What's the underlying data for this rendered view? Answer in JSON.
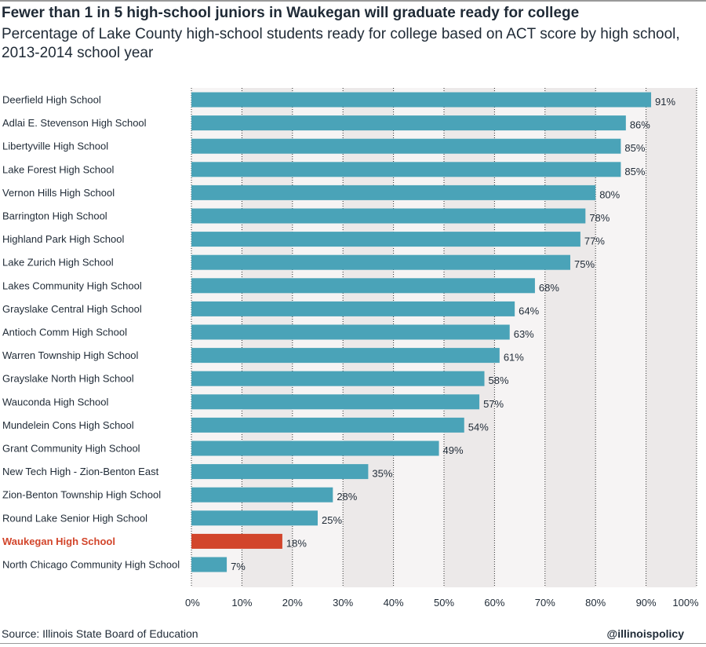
{
  "header": {
    "title": "Fewer than 1 in 5 high-school juniors in Waukegan will graduate ready for college",
    "subtitle": "Percentage of Lake County high-school students ready for college based on ACT score by high school, 2013-2014 school year"
  },
  "footer": {
    "source": "Source: Illinois State Board of Education",
    "handle": "@illinoispolicy"
  },
  "colors": {
    "bar": "#4aa3b8",
    "highlight": "#d2452b",
    "band_dark": "#ece9e9",
    "band_light": "#f6f4f4",
    "grid": "#2b2b2b"
  },
  "chart_data": {
    "type": "bar",
    "orientation": "horizontal",
    "categories": [
      "Deerfield High School",
      "Adlai E. Stevenson High School",
      "Libertyville High School",
      "Lake Forest High School",
      "Vernon Hills High School",
      "Barrington High School",
      "Highland Park High School",
      "Lake Zurich High School",
      "Lakes Community High School",
      "Grayslake Central High School",
      "Antioch Comm High School",
      "Warren Township High School",
      "Grayslake North High School",
      "Wauconda High School",
      "Mundelein Cons High School",
      "Grant Community High School",
      "New Tech High - Zion-Benton East",
      "Zion-Benton Township High School",
      "Round Lake Senior High School",
      "Waukegan High School",
      "North Chicago Community High School"
    ],
    "values": [
      91,
      86,
      85,
      85,
      80,
      78,
      77,
      75,
      68,
      64,
      63,
      61,
      58,
      57,
      54,
      49,
      35,
      28,
      25,
      18,
      7
    ],
    "value_labels": [
      "91%",
      "86%",
      "85%",
      "85%",
      "80%",
      "78%",
      "77%",
      "75%",
      "68%",
      "64%",
      "63%",
      "61%",
      "58%",
      "57%",
      "54%",
      "49%",
      "35%",
      "28%",
      "25%",
      "18%",
      "7%"
    ],
    "highlight": "Waukegan High School",
    "xlim": [
      0,
      100
    ],
    "xticks": [
      0,
      10,
      20,
      30,
      40,
      50,
      60,
      70,
      80,
      90,
      100
    ],
    "xtick_labels": [
      "0%",
      "10%",
      "20%",
      "30%",
      "40%",
      "50%",
      "60%",
      "70%",
      "80%",
      "90%",
      "100%"
    ],
    "xlabel": "",
    "ylabel": "",
    "grid": true,
    "legend": "none"
  }
}
